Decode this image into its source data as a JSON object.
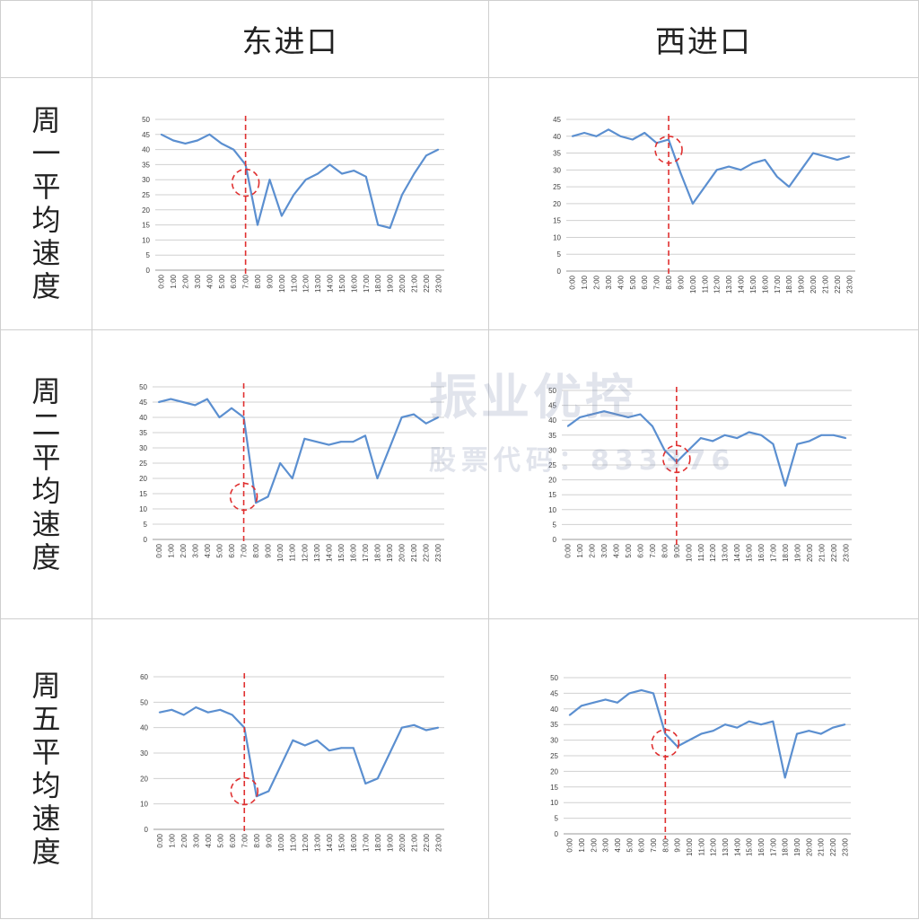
{
  "columns": [
    "东进口",
    "西进口"
  ],
  "rows": [
    "周一平均速度",
    "周二平均速度",
    "周五平均速度"
  ],
  "watermark": {
    "brand": "振业优控",
    "stock": "股票代码：833376"
  },
  "colors": {
    "line": "#5b8fd0",
    "divider": "#e03030",
    "grid": "#d0d0d0"
  },
  "chart_data": [
    {
      "type": "line",
      "row": "周一平均速度",
      "column": "东进口",
      "categories": [
        "0:00",
        "1:00",
        "2:00",
        "3:00",
        "4:00",
        "5:00",
        "6:00",
        "7:00",
        "8:00",
        "9:00",
        "10:00",
        "11:00",
        "12:00",
        "13:00",
        "14:00",
        "15:00",
        "16:00",
        "17:00",
        "18:00",
        "19:00",
        "20:00",
        "21:00",
        "22:00",
        "23:00"
      ],
      "series": [
        {
          "values": [
            45,
            43,
            42,
            43,
            45,
            42,
            40,
            35,
            15,
            30,
            18,
            25,
            30,
            32,
            35,
            32,
            33,
            31,
            15,
            14,
            25,
            32,
            38,
            40
          ]
        }
      ],
      "ylim": [
        0,
        50
      ],
      "ytick_step": 5,
      "marker_x": 7.5,
      "circle": {
        "x": 7.5,
        "y": 29
      },
      "grid": true,
      "legend": "none"
    },
    {
      "type": "line",
      "row": "周一平均速度",
      "column": "西进口",
      "categories": [
        "0:00",
        "1:00",
        "2:00",
        "3:00",
        "4:00",
        "5:00",
        "6:00",
        "7:00",
        "8:00",
        "9:00",
        "10:00",
        "11:00",
        "12:00",
        "13:00",
        "14:00",
        "15:00",
        "16:00",
        "17:00",
        "18:00",
        "19:00",
        "20:00",
        "21:00",
        "22:00",
        "23:00"
      ],
      "series": [
        {
          "values": [
            40,
            41,
            40,
            42,
            40,
            39,
            41,
            38,
            39,
            29,
            20,
            25,
            30,
            31,
            30,
            32,
            33,
            28,
            25,
            30,
            35,
            34,
            33,
            34
          ]
        }
      ],
      "ylim": [
        0,
        45
      ],
      "ytick_step": 5,
      "marker_x": 8.5,
      "circle": {
        "x": 8.5,
        "y": 36
      },
      "grid": true,
      "legend": "none"
    },
    {
      "type": "line",
      "row": "周二平均速度",
      "column": "东进口",
      "categories": [
        "0:00",
        "1:00",
        "2:00",
        "3:00",
        "4:00",
        "5:00",
        "6:00",
        "7:00",
        "8:00",
        "9:00",
        "10:00",
        "11:00",
        "12:00",
        "13:00",
        "14:00",
        "15:00",
        "16:00",
        "17:00",
        "18:00",
        "19:00",
        "20:00",
        "21:00",
        "22:00",
        "23:00"
      ],
      "series": [
        {
          "values": [
            45,
            46,
            45,
            44,
            46,
            40,
            43,
            40,
            12,
            14,
            25,
            20,
            33,
            32,
            31,
            32,
            32,
            34,
            20,
            30,
            40,
            41,
            38,
            40
          ]
        }
      ],
      "ylim": [
        0,
        50
      ],
      "ytick_step": 5,
      "marker_x": 7.5,
      "circle": {
        "x": 7.5,
        "y": 14
      },
      "grid": true,
      "legend": "none"
    },
    {
      "type": "line",
      "row": "周二平均速度",
      "column": "西进口",
      "categories": [
        "0:00",
        "1:00",
        "2:00",
        "3:00",
        "4:00",
        "5:00",
        "6:00",
        "7:00",
        "8:00",
        "9:00",
        "10:00",
        "11:00",
        "12:00",
        "13:00",
        "14:00",
        "15:00",
        "16:00",
        "17:00",
        "18:00",
        "19:00",
        "20:00",
        "21:00",
        "22:00",
        "23:00"
      ],
      "series": [
        {
          "values": [
            38,
            41,
            42,
            43,
            42,
            41,
            42,
            38,
            30,
            26,
            30,
            34,
            33,
            35,
            34,
            36,
            35,
            32,
            18,
            32,
            33,
            35,
            35,
            34
          ]
        }
      ],
      "ylim": [
        0,
        50
      ],
      "ytick_step": 5,
      "marker_x": 9.5,
      "circle": {
        "x": 9.5,
        "y": 27
      },
      "grid": true,
      "legend": "none"
    },
    {
      "type": "line",
      "row": "周五平均速度",
      "column": "东进口",
      "categories": [
        "0:00",
        "1:00",
        "2:00",
        "3:00",
        "4:00",
        "5:00",
        "6:00",
        "7:00",
        "8:00",
        "9:00",
        "10:00",
        "11:00",
        "12:00",
        "13:00",
        "14:00",
        "15:00",
        "16:00",
        "17:00",
        "18:00",
        "19:00",
        "20:00",
        "21:00",
        "22:00",
        "23:00"
      ],
      "series": [
        {
          "values": [
            46,
            47,
            45,
            48,
            46,
            47,
            45,
            40,
            13,
            15,
            25,
            35,
            33,
            35,
            31,
            32,
            32,
            18,
            20,
            30,
            40,
            41,
            39,
            40
          ]
        }
      ],
      "ylim": [
        0,
        60
      ],
      "ytick_step": 10,
      "marker_x": 7.5,
      "circle": {
        "x": 7.5,
        "y": 15
      },
      "grid": true,
      "legend": "none"
    },
    {
      "type": "line",
      "row": "周五平均速度",
      "column": "西进口",
      "categories": [
        "0:00",
        "1:00",
        "2:00",
        "3:00",
        "4:00",
        "5:00",
        "6:00",
        "7:00",
        "8:00",
        "9:00",
        "10:00",
        "11:00",
        "12:00",
        "13:00",
        "14:00",
        "15:00",
        "16:00",
        "17:00",
        "18:00",
        "19:00",
        "20:00",
        "21:00",
        "22:00",
        "23:00"
      ],
      "series": [
        {
          "values": [
            38,
            41,
            42,
            43,
            42,
            45,
            46,
            45,
            32,
            28,
            30,
            32,
            33,
            35,
            34,
            36,
            35,
            36,
            18,
            32,
            33,
            32,
            34,
            35
          ]
        }
      ],
      "ylim": [
        0,
        50
      ],
      "ytick_step": 5,
      "marker_x": 8.5,
      "circle": {
        "x": 8.5,
        "y": 29
      },
      "grid": true,
      "legend": "none"
    }
  ]
}
